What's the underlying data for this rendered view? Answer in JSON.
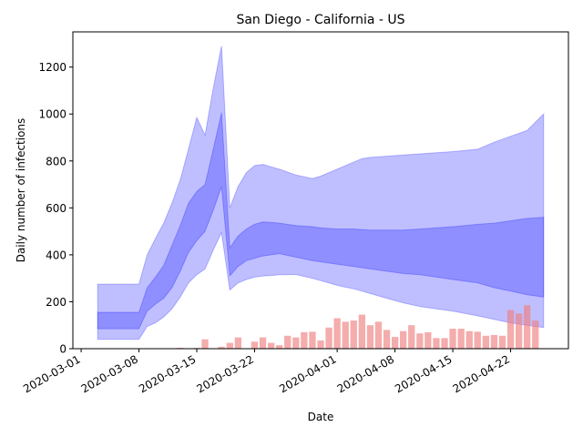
{
  "chart_data": {
    "type": "area",
    "title": "San Diego - California - US",
    "xlabel": "Date",
    "ylabel": "Daily number of infections",
    "xlim": [
      "2020-02-29",
      "2020-04-29"
    ],
    "ylim": [
      0,
      1350
    ],
    "x_ticks": [
      "2020-03-01",
      "2020-03-08",
      "2020-03-15",
      "2020-03-22",
      "2020-04-01",
      "2020-04-08",
      "2020-04-15",
      "2020-04-22"
    ],
    "y_ticks": [
      0,
      200,
      400,
      600,
      800,
      1000,
      1200
    ],
    "grid": false,
    "legend": "none",
    "colors": {
      "band": "#0000ff",
      "bars": "#f08080"
    },
    "bands": [
      {
        "x": [
          "2020-03-03",
          "2020-03-08",
          "2020-03-09",
          "2020-03-10",
          "2020-03-11",
          "2020-03-12",
          "2020-03-13",
          "2020-03-14",
          "2020-03-15",
          "2020-03-16",
          "2020-03-17",
          "2020-03-18",
          "2020-03-19",
          "2020-03-20",
          "2020-03-21",
          "2020-03-22",
          "2020-03-23",
          "2020-03-24",
          "2020-03-25",
          "2020-03-27",
          "2020-03-29",
          "2020-03-30",
          "2020-04-01",
          "2020-04-03",
          "2020-04-04",
          "2020-04-05",
          "2020-04-07",
          "2020-04-09",
          "2020-04-11",
          "2020-04-13",
          "2020-04-15",
          "2020-04-18",
          "2020-04-20",
          "2020-04-22",
          "2020-04-24",
          "2020-04-26"
        ],
        "lower": [
          40,
          40,
          95,
          110,
          135,
          170,
          220,
          280,
          315,
          340,
          420,
          495,
          250,
          280,
          295,
          305,
          310,
          312,
          315,
          316,
          300,
          290,
          270,
          255,
          245,
          235,
          215,
          195,
          180,
          170,
          160,
          140,
          125,
          110,
          100,
          90
        ],
        "upper": [
          275,
          275,
          400,
          470,
          535,
          620,
          720,
          850,
          985,
          910,
          1110,
          1290,
          600,
          690,
          750,
          780,
          785,
          775,
          765,
          740,
          725,
          735,
          765,
          795,
          810,
          815,
          820,
          825,
          830,
          835,
          840,
          850,
          880,
          905,
          930,
          1000
        ]
      },
      {
        "x": [
          "2020-03-03",
          "2020-03-08",
          "2020-03-09",
          "2020-03-10",
          "2020-03-11",
          "2020-03-12",
          "2020-03-13",
          "2020-03-14",
          "2020-03-15",
          "2020-03-16",
          "2020-03-17",
          "2020-03-18",
          "2020-03-19",
          "2020-03-20",
          "2020-03-21",
          "2020-03-22",
          "2020-03-23",
          "2020-03-24",
          "2020-03-25",
          "2020-03-27",
          "2020-03-29",
          "2020-03-30",
          "2020-04-01",
          "2020-04-03",
          "2020-04-05",
          "2020-04-07",
          "2020-04-09",
          "2020-04-11",
          "2020-04-13",
          "2020-04-15",
          "2020-04-18",
          "2020-04-20",
          "2020-04-22",
          "2020-04-24",
          "2020-04-26"
        ],
        "lower": [
          85,
          85,
          160,
          190,
          215,
          260,
          330,
          410,
          460,
          500,
          590,
          690,
          310,
          350,
          375,
          385,
          395,
          400,
          405,
          390,
          375,
          370,
          360,
          350,
          340,
          330,
          320,
          315,
          305,
          295,
          280,
          260,
          245,
          230,
          220
        ],
        "upper": [
          155,
          155,
          260,
          305,
          355,
          440,
          525,
          620,
          670,
          700,
          850,
          1005,
          430,
          480,
          510,
          530,
          540,
          538,
          535,
          525,
          520,
          515,
          510,
          510,
          505,
          505,
          505,
          510,
          515,
          520,
          530,
          535,
          545,
          555,
          560
        ]
      }
    ],
    "bars": {
      "x": [
        "2020-03-04",
        "2020-03-09",
        "2020-03-10",
        "2020-03-11",
        "2020-03-12",
        "2020-03-13",
        "2020-03-14",
        "2020-03-15",
        "2020-03-16",
        "2020-03-17",
        "2020-03-18",
        "2020-03-19",
        "2020-03-20",
        "2020-03-21",
        "2020-03-22",
        "2020-03-23",
        "2020-03-24",
        "2020-03-25",
        "2020-03-26",
        "2020-03-27",
        "2020-03-28",
        "2020-03-29",
        "2020-03-30",
        "2020-03-31",
        "2020-04-01",
        "2020-04-02",
        "2020-04-03",
        "2020-04-04",
        "2020-04-05",
        "2020-04-06",
        "2020-04-07",
        "2020-04-08",
        "2020-04-09",
        "2020-04-10",
        "2020-04-11",
        "2020-04-12",
        "2020-04-13",
        "2020-04-14",
        "2020-04-15",
        "2020-04-16",
        "2020-04-17",
        "2020-04-18",
        "2020-04-19",
        "2020-04-20",
        "2020-04-21",
        "2020-04-22",
        "2020-04-23",
        "2020-04-24",
        "2020-04-25"
      ],
      "values": [
        0,
        0,
        0,
        0,
        2,
        4,
        2,
        3,
        40,
        0,
        8,
        25,
        48,
        0,
        30,
        48,
        25,
        15,
        55,
        48,
        70,
        72,
        35,
        90,
        130,
        115,
        120,
        145,
        100,
        115,
        80,
        50,
        75,
        100,
        65,
        70,
        45,
        45,
        85,
        85,
        75,
        72,
        55,
        58,
        55,
        165,
        150,
        185,
        120
      ]
    }
  }
}
